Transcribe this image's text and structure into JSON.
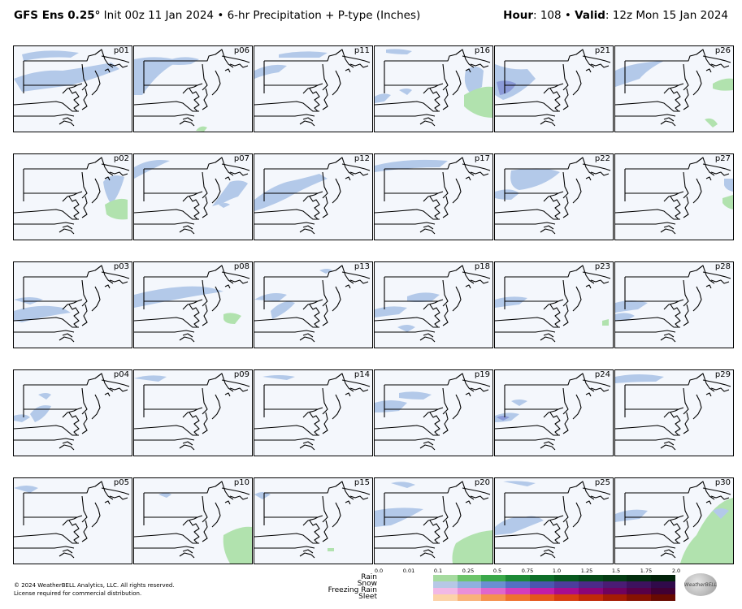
{
  "header": {
    "model": "GFS Ens 0.25",
    "degree": "°",
    "init": "Init 00z 11 Jan 2024",
    "separator": "•",
    "product": "6-hr Precipitation + P-type (Inches)",
    "hour_label": "Hour",
    "hour_value": ": 108",
    "valid_label": "Valid",
    "valid_value": ": 12z Mon 15 Jan 2024"
  },
  "panels": [
    "p01",
    "p06",
    "p11",
    "p16",
    "p21",
    "p26",
    "p02",
    "p07",
    "p12",
    "p17",
    "p22",
    "p27",
    "p03",
    "p08",
    "p13",
    "p18",
    "p23",
    "p28",
    "p04",
    "p09",
    "p14",
    "p19",
    "p24",
    "p29",
    "p05",
    "p10",
    "p15",
    "p20",
    "p25",
    "p30"
  ],
  "legend": {
    "ticks": [
      "0.0",
      "0.01",
      "0.1",
      "0.25",
      "0.5",
      "0.75",
      "1.0",
      "1.25",
      "1.5",
      "1.75",
      "2.0"
    ],
    "rows": [
      {
        "label": "Rain",
        "colors": [
          "#ffffff",
          "#a6dba0",
          "#6cc46a",
          "#3aa84a",
          "#1d8a36",
          "#0d6e28",
          "#08591e",
          "#064a18",
          "#053c13",
          "#032e0e",
          "#02220a"
        ]
      },
      {
        "label": "Snow",
        "colors": [
          "#ffffff",
          "#b6c8e6",
          "#8fb0de",
          "#6b8fd2",
          "#5570c4",
          "#4b55b0",
          "#4d3d9c",
          "#4c2a88",
          "#4a1c74",
          "#3d125e",
          "#300a4a"
        ]
      },
      {
        "label": "Freezing Rain",
        "colors": [
          "#ffffff",
          "#f2b8e6",
          "#ea8fd8",
          "#e066cc",
          "#d43dbd",
          "#c21da8",
          "#a80d8f",
          "#8c0576",
          "#70025e",
          "#580048",
          "#400034"
        ]
      },
      {
        "label": "Sleet",
        "colors": [
          "#ffffff",
          "#fcd2a8",
          "#f9b27a",
          "#f5924f",
          "#ee7230",
          "#e4571c",
          "#d63e10",
          "#c02a08",
          "#a41c04",
          "#861202",
          "#680a01"
        ]
      }
    ]
  },
  "footer": {
    "copyright": "© 2024 WeatherBELL Analytics, LLC. All rights reserved.",
    "license": "License required for commercial distribution.",
    "logo_text": "WeatherBELL"
  }
}
